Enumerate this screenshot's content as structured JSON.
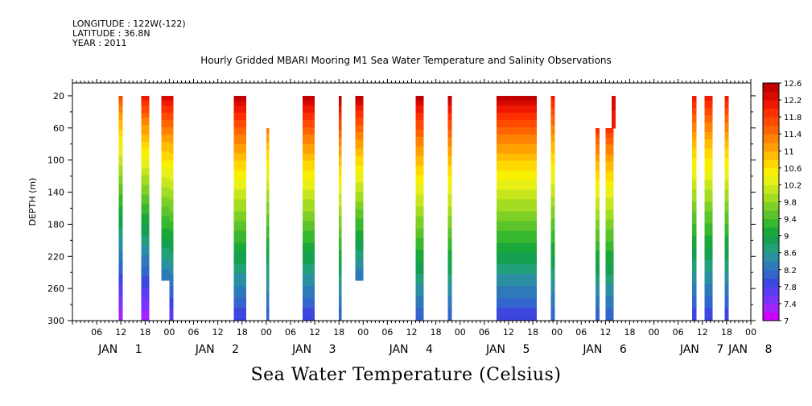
{
  "header": {
    "longitude": "LONGITUDE : 122W(-122)",
    "latitude": "LATITUDE : 36.8N",
    "year": "YEAR : 2011"
  },
  "title": "Hourly Gridded MBARI Mooring M1 Sea Water Temperature and Salinity Observations",
  "bottom_title": "Sea Water Temperature (Celsius)",
  "chart_data": {
    "type": "heatmap",
    "title": "Hourly Gridded MBARI Mooring M1 Sea Water Temperature and Salinity Observations",
    "xlabel": "",
    "ylabel": "DEPTH (m)",
    "colorbar_label": "Sea Water Temperature (Celsius)",
    "x_units": "hours since JAN 1 00:00 (2011)",
    "xlim": [
      0,
      168
    ],
    "ylim": [
      300,
      0
    ],
    "y_ticks": [
      20,
      60,
      100,
      140,
      180,
      220,
      260,
      300
    ],
    "x_hour_ticks": [
      "06",
      "12",
      "18",
      "00",
      "06",
      "12",
      "18",
      "00",
      "06",
      "12",
      "18",
      "00",
      "06",
      "12",
      "18",
      "00",
      "06",
      "12",
      "18",
      "00",
      "06",
      "12",
      "18",
      "00",
      "06",
      "12",
      "18",
      "00"
    ],
    "x_hour_values": [
      6,
      12,
      18,
      24,
      30,
      36,
      42,
      48,
      54,
      60,
      66,
      72,
      78,
      84,
      90,
      96,
      102,
      108,
      114,
      120,
      126,
      132,
      138,
      144,
      150,
      156,
      162,
      168
    ],
    "x_day_labels": [
      {
        "label": "JAN",
        "day": "1",
        "hour": 12
      },
      {
        "label": "JAN",
        "day": "2",
        "hour": 36
      },
      {
        "label": "JAN",
        "day": "3",
        "hour": 60
      },
      {
        "label": "JAN",
        "day": "4",
        "hour": 84
      },
      {
        "label": "JAN",
        "day": "5",
        "hour": 108
      },
      {
        "label": "JAN",
        "day": "6",
        "hour": 132
      },
      {
        "label": "JAN",
        "day": "7",
        "hour": 156
      },
      {
        "label": "JAN",
        "day": "8",
        "hour": 168
      }
    ],
    "colorbar": {
      "levels": [
        7,
        7.2,
        7.4,
        7.6,
        7.8,
        8,
        8.2,
        8.4,
        8.6,
        8.8,
        9,
        9.2,
        9.4,
        9.6,
        9.8,
        10,
        10.2,
        10.4,
        10.6,
        10.8,
        11,
        11.2,
        11.4,
        11.6,
        11.8,
        12,
        12.2,
        12.4,
        12.6
      ],
      "labels": [
        "12.6",
        "12.2",
        "11.8",
        "11.4",
        "11",
        "10.6",
        "10.2",
        "9.8",
        "9.4",
        "9",
        "8.6",
        "8.2",
        "7.8",
        "7.4",
        "7"
      ],
      "colors": [
        "#cc00ff",
        "#a324ff",
        "#7a33ff",
        "#5a3df0",
        "#3d47e0",
        "#3366cc",
        "#2e7ab8",
        "#2a8fa3",
        "#22a07a",
        "#14a050",
        "#1aa83a",
        "#38b82e",
        "#5cc42a",
        "#7ed026",
        "#a3dc20",
        "#c8e61c",
        "#e8f018",
        "#f8f000",
        "#ffd800",
        "#ffbc00",
        "#ffa000",
        "#ff8200",
        "#ff6400",
        "#ff4a00",
        "#ff3000",
        "#f01800",
        "#d80a00",
        "#c00000"
      ]
    },
    "data_segments": [
      {
        "x": [
          11.5,
          12.5
        ],
        "depth": [
          20,
          300
        ],
        "surface_temp": 11.8,
        "bottom_temp": 7.2
      },
      {
        "x": [
          17,
          19
        ],
        "depth": [
          20,
          300
        ],
        "surface_temp": 12.2,
        "bottom_temp": 7.2
      },
      {
        "x": [
          22,
          24
        ],
        "depth": [
          20,
          250
        ],
        "surface_temp": 12.4,
        "bottom_temp": 8.2
      },
      {
        "x": [
          24,
          25
        ],
        "depth": [
          20,
          300
        ],
        "surface_temp": 12.4,
        "bottom_temp": 7.6
      },
      {
        "x": [
          40,
          43
        ],
        "depth": [
          20,
          300
        ],
        "surface_temp": 12.6,
        "bottom_temp": 7.8
      },
      {
        "x": [
          48,
          48.7
        ],
        "depth": [
          60,
          300
        ],
        "surface_temp": 11.4,
        "bottom_temp": 8.0
      },
      {
        "x": [
          57,
          60
        ],
        "depth": [
          20,
          300
        ],
        "surface_temp": 12.6,
        "bottom_temp": 7.8
      },
      {
        "x": [
          66,
          66.7
        ],
        "depth": [
          20,
          300
        ],
        "surface_temp": 12.6,
        "bottom_temp": 8.0
      },
      {
        "x": [
          70,
          72
        ],
        "depth": [
          20,
          250
        ],
        "surface_temp": 12.6,
        "bottom_temp": 8.2
      },
      {
        "x": [
          85,
          87
        ],
        "depth": [
          20,
          300
        ],
        "surface_temp": 12.6,
        "bottom_temp": 8.0
      },
      {
        "x": [
          93,
          94
        ],
        "depth": [
          20,
          300
        ],
        "surface_temp": 12.6,
        "bottom_temp": 8.0
      },
      {
        "x": [
          105,
          115
        ],
        "depth": [
          20,
          300
        ],
        "surface_temp": 12.6,
        "bottom_temp": 7.8
      },
      {
        "x": [
          118.5,
          119.5
        ],
        "depth": [
          20,
          300
        ],
        "surface_temp": 12.2,
        "bottom_temp": 8.0
      },
      {
        "x": [
          129.5,
          130.5
        ],
        "depth": [
          60,
          300
        ],
        "surface_temp": 12.0,
        "bottom_temp": 8.0
      },
      {
        "x": [
          132,
          134
        ],
        "depth": [
          60,
          300
        ],
        "surface_temp": 12.0,
        "bottom_temp": 8.0
      },
      {
        "x": [
          133.5,
          134.5
        ],
        "depth": [
          20,
          60
        ],
        "surface_temp": 12.4,
        "bottom_temp": 12.0
      },
      {
        "x": [
          153.5,
          154.5
        ],
        "depth": [
          20,
          300
        ],
        "surface_temp": 12.2,
        "bottom_temp": 7.8
      },
      {
        "x": [
          156.5,
          158.5
        ],
        "depth": [
          20,
          300
        ],
        "surface_temp": 12.2,
        "bottom_temp": 7.8
      },
      {
        "x": [
          161.5,
          162.5
        ],
        "depth": [
          20,
          300
        ],
        "surface_temp": 12.2,
        "bottom_temp": 7.8
      }
    ],
    "grid": false,
    "legend": "right colorbar"
  }
}
